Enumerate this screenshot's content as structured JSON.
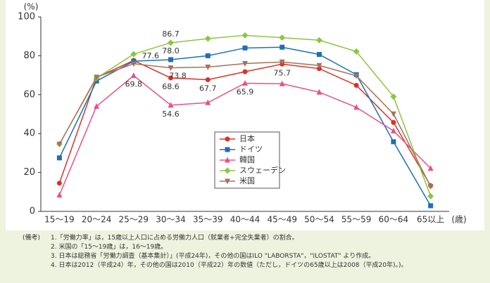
{
  "chart_data": {
    "type": "line",
    "y_label": "(%)",
    "x_label": "(歳)",
    "categories": [
      "15～19",
      "20～24",
      "25～29",
      "30～34",
      "35～39",
      "40～44",
      "45～49",
      "50～54",
      "55～59",
      "60～64",
      "65以上"
    ],
    "ylim": [
      0,
      100
    ],
    "yticks": [
      0,
      20,
      40,
      60,
      80,
      100
    ],
    "grid": false,
    "series": [
      {
        "name": "日本",
        "color": "#d8322a",
        "marker": "circle",
        "values": [
          14.5,
          68.8,
          77.6,
          68.6,
          67.7,
          71.8,
          75.7,
          73.4,
          64.8,
          45.7,
          13.2
        ],
        "value_labels": [
          null,
          null,
          "77.6",
          "68.6",
          "67.7",
          null,
          "75.7",
          null,
          null,
          null,
          null
        ]
      },
      {
        "name": "ドイツ",
        "color": "#1f6fb4",
        "marker": "square",
        "values": [
          27.5,
          67.0,
          77.2,
          78.0,
          80.0,
          84.0,
          84.4,
          80.7,
          70.3,
          35.8,
          2.9
        ],
        "value_labels": [
          null,
          null,
          null,
          "78.0",
          null,
          null,
          null,
          null,
          null,
          null,
          null
        ]
      },
      {
        "name": "韓国",
        "color": "#e8508a",
        "marker": "triangle",
        "values": [
          8.4,
          54.0,
          69.8,
          54.6,
          55.9,
          65.9,
          65.6,
          61.3,
          53.5,
          41.4,
          22.1
        ],
        "value_labels": [
          null,
          null,
          "69.8",
          "54.6",
          null,
          "65.9",
          null,
          null,
          null,
          null,
          null
        ]
      },
      {
        "name": "スウェーデン",
        "color": "#8cc63e",
        "marker": "diamond",
        "values": [
          34.6,
          68.5,
          80.8,
          86.7,
          88.8,
          90.5,
          89.3,
          88.0,
          82.2,
          59.0,
          7.8
        ],
        "value_labels": [
          null,
          null,
          null,
          "86.7",
          null,
          null,
          null,
          null,
          null,
          null,
          null
        ]
      },
      {
        "name": "米国",
        "color": "#a8705a",
        "marker": "triangle-down",
        "values": [
          34.5,
          69.0,
          75.9,
          73.8,
          74.2,
          76.0,
          76.8,
          75.0,
          69.7,
          50.1,
          12.8
        ],
        "value_labels": [
          null,
          null,
          null,
          "73.8",
          null,
          null,
          null,
          null,
          null,
          null,
          null
        ]
      }
    ]
  },
  "notes": [
    "(備考)",
    "1.「労働力率」は，15歳以上人口に占める労働力人口（就業者+完全失業者）の割合。",
    "2. 米国の「15～19歳」は，16～19歳。",
    "3. 日本は総務省「労働力調査（基本集計）」(平成24年)，その他の国はILO \"LABORSTA\"，\"ILOSTAT\" より作成。",
    "4. 日本は2012（平成24）年，その他の国は2010（平成22）年の数値（ただし，ドイツの65歳以上は2008（平成20年)。)。"
  ]
}
